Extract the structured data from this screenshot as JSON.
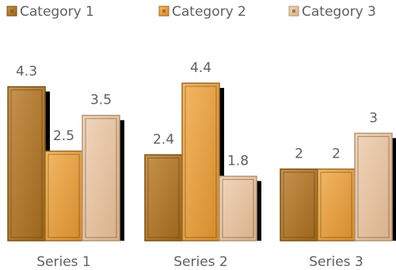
{
  "chart_data": {
    "type": "bar",
    "title": "",
    "xlabel": "",
    "ylabel": "",
    "categories": [
      "Series 1",
      "Series 2",
      "Series 3"
    ],
    "series": [
      {
        "name": "Category 1",
        "values": [
          4.3,
          2.4,
          2
        ],
        "color": "#B57A2A"
      },
      {
        "name": "Category 2",
        "values": [
          2.5,
          4.4,
          2
        ],
        "color": "#E8A545"
      },
      {
        "name": "Category 3",
        "values": [
          3.5,
          1.8,
          3
        ],
        "color": "#E6C3A4"
      }
    ],
    "ylim": [
      0,
      4.6
    ],
    "grid": false,
    "legend": "top"
  }
}
